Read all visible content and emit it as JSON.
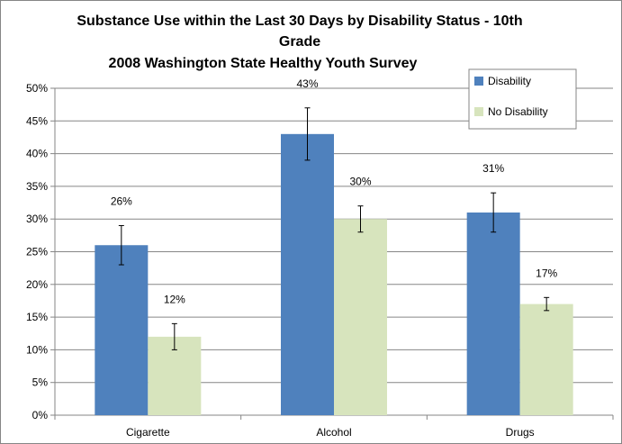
{
  "chart_data": {
    "type": "bar",
    "title_lines": [
      "Substance Use within the Last 30 Days by Disability Status - 10th",
      "Grade",
      "2008 Washington State Healthy Youth Survey"
    ],
    "categories": [
      "Cigarette",
      "Alcohol",
      "Drugs"
    ],
    "series": [
      {
        "name": "Disability",
        "color": "#4f81bd",
        "values": [
          26,
          43,
          31
        ],
        "labels": [
          "26%",
          "43%",
          "31%"
        ],
        "error_low": [
          23,
          39,
          28
        ],
        "error_high": [
          29,
          47,
          34
        ]
      },
      {
        "name": "No Disability",
        "color": "#d7e4bd",
        "values": [
          12,
          30,
          17
        ],
        "labels": [
          "12%",
          "30%",
          "17%"
        ],
        "error_low": [
          10,
          28,
          16
        ],
        "error_high": [
          14,
          32,
          18
        ]
      }
    ],
    "ylim": [
      0,
      50
    ],
    "yticks": [
      0,
      5,
      10,
      15,
      20,
      25,
      30,
      35,
      40,
      45,
      50
    ],
    "ytick_labels": [
      "0%",
      "5%",
      "10%",
      "15%",
      "20%",
      "25%",
      "30%",
      "35%",
      "40%",
      "45%",
      "50%"
    ],
    "xlabel": "",
    "ylabel": "",
    "grid": true,
    "legend": "top-right"
  }
}
